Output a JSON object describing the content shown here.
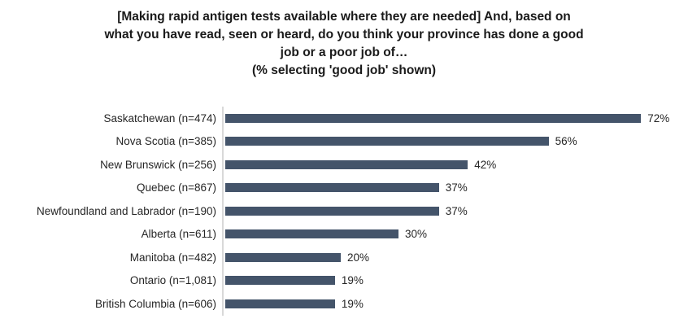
{
  "chart_data": {
    "type": "bar",
    "orientation": "horizontal",
    "title": "[Making rapid antigen tests available where they are needed] And, based on what you have read, seen or heard, do you think your province has done a good job or a poor job of… (% selecting 'good job' shown)",
    "title_lines": [
      "[Making rapid antigen tests available where they are needed] And, based on",
      "what you have read, seen or heard, do you think your province has done a good",
      "job or a poor job of…",
      "(% selecting 'good job' shown)"
    ],
    "categories": [
      "Saskatchewan (n=474)",
      "Nova Scotia (n=385)",
      "New Brunswick (n=256)",
      "Quebec (n=867)",
      "Newfoundland and Labrador (n=190)",
      "Alberta (n=611)",
      "Manitoba (n=482)",
      "Ontario (n=1,081)",
      "British Columbia (n=606)"
    ],
    "values": [
      72,
      56,
      42,
      37,
      37,
      30,
      20,
      19,
      19
    ],
    "value_labels": [
      "72%",
      "56%",
      "42%",
      "37%",
      "37%",
      "30%",
      "20%",
      "19%",
      "19%"
    ],
    "xlabel": "",
    "ylabel": "",
    "xlim": [
      0,
      80
    ],
    "grid": false,
    "legend": false,
    "bar_color": "#44546A",
    "axis_line_color": "#D9D9D9"
  }
}
